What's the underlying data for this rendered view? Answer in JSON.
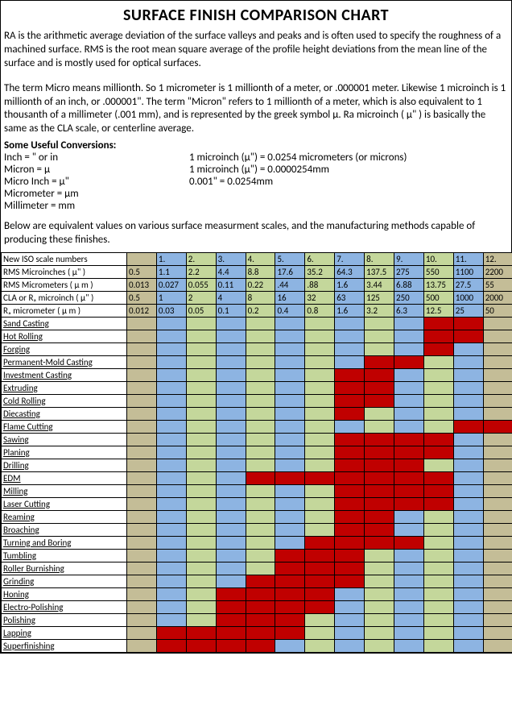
{
  "colors": {
    "tan": "#c4bd97",
    "blue": "#8db4e2",
    "green": "#c4d79b",
    "red": "#c00000",
    "white": "#ffffff"
  },
  "title": "SURFACE FINISH COMPARISON CHART",
  "para1": "RA is the arithmetic average deviation of the surface valleys and peaks and is often used to specify the roughness of a machined surface.  RMS is the root mean square average of the profile height deviations from the mean line of the surface and is mostly used for optical surfaces.",
  "para2": "The term Micro means millionth.  So 1 micrometer is 1 millionth of a meter, or .000001 meter. Likewise 1 microinch is 1 millionth of an inch, or .000001\".  The term \"Micron\" refers to 1 millionth of a meter, which is also equivalent to 1 thousanth of a millimeter (.001 mm), and is represented by the greek symbol μ.  Ra microinch ( μ\" ) is basically the same as the CLA scale, or centerline average.",
  "conv_head": "Some Useful Conversions:",
  "conversions": [
    {
      "l": "Inch = \" or in",
      "r": "1 microinch (μ\") = 0.0254 micrometers (or microns)"
    },
    {
      "l": "Micron = μ",
      "r": "1 microinch (μ\") = 0.0000254mm"
    },
    {
      "l": "Micro Inch = μ\"",
      "r": "0.001\" = 0.0254mm"
    },
    {
      "l": "Micrometer = μm",
      "r": ""
    },
    {
      "l": "Millimeter = mm",
      "r": ""
    }
  ],
  "para3": "Below are equivalent values on various surface measurment scales, and the manufacturing methods capable of producing these finishes.",
  "header_rows": [
    {
      "label": "New ISO scale numbers",
      "vals": [
        "",
        "1.",
        "2.",
        "3.",
        "4.",
        "5.",
        "6.",
        "7.",
        "8.",
        "9.",
        "10.",
        "11.",
        "12."
      ],
      "bg": [
        "tan",
        "blue",
        "green",
        "blue",
        "green",
        "blue",
        "green",
        "blue",
        "green",
        "blue",
        "green",
        "blue",
        "tan"
      ]
    },
    {
      "label": "RMS Microinches ( μ\" )",
      "vals": [
        "0.5",
        "1.1",
        "2.2",
        "4.4",
        "8.8",
        "17.6",
        "35.2",
        "64.3",
        "137.5",
        "275",
        "550",
        "1100",
        "2200"
      ],
      "bg": [
        "tan",
        "blue",
        "green",
        "blue",
        "green",
        "blue",
        "green",
        "blue",
        "green",
        "blue",
        "green",
        "blue",
        "tan"
      ]
    },
    {
      "label": "RMS Micrometers ( μ m )",
      "vals": [
        "0.013",
        "0.027",
        "0.055",
        "0.11",
        "0.22",
        ".44",
        ".88",
        "1.6",
        "3.44",
        "6.88",
        "13.75",
        "27.5",
        "55"
      ],
      "bg": [
        "tan",
        "blue",
        "green",
        "blue",
        "green",
        "blue",
        "green",
        "blue",
        "green",
        "blue",
        "green",
        "blue",
        "tan"
      ]
    },
    {
      "label": "CLA or Rₐ microinch ( μ\" )",
      "vals": [
        "0.5",
        "1",
        "2",
        "4",
        "8",
        "16",
        "32",
        "63",
        "125",
        "250",
        "500",
        "1000",
        "2000"
      ],
      "bg": [
        "tan",
        "blue",
        "green",
        "blue",
        "green",
        "blue",
        "green",
        "blue",
        "green",
        "blue",
        "green",
        "blue",
        "tan"
      ]
    },
    {
      "label": "Rₐ micrometer  ( μ m )",
      "vals": [
        "0.012",
        "0.03",
        "0.05",
        "0.1",
        "0.2",
        "0.4",
        "0.8",
        "1.6",
        "3.2",
        "6.3",
        "12.5",
        "25",
        "50"
      ],
      "bg": [
        "tan",
        "blue",
        "green",
        "blue",
        "green",
        "blue",
        "green",
        "blue",
        "green",
        "blue",
        "green",
        "blue",
        "tan"
      ]
    }
  ],
  "method_rows": [
    {
      "label": "Sand Casting",
      "cells": [
        "tan",
        "blue",
        "green",
        "blue",
        "green",
        "blue",
        "green",
        "blue",
        "green",
        "blue",
        "red",
        "red",
        "tan"
      ]
    },
    {
      "label": "Hot Rolling",
      "cells": [
        "tan",
        "blue",
        "green",
        "blue",
        "green",
        "blue",
        "green",
        "blue",
        "green",
        "blue",
        "red",
        "red",
        "tan"
      ]
    },
    {
      "label": "Forging",
      "cells": [
        "tan",
        "blue",
        "green",
        "blue",
        "green",
        "blue",
        "green",
        "blue",
        "green",
        "blue",
        "red",
        "blue",
        "tan"
      ]
    },
    {
      "label": "Permanent-Mold Casting",
      "cells": [
        "tan",
        "blue",
        "green",
        "blue",
        "green",
        "blue",
        "green",
        "blue",
        "red",
        "red",
        "green",
        "blue",
        "tan"
      ]
    },
    {
      "label": "Investment Casting",
      "cells": [
        "tan",
        "blue",
        "green",
        "blue",
        "green",
        "blue",
        "green",
        "red",
        "red",
        "blue",
        "green",
        "blue",
        "tan"
      ]
    },
    {
      "label": "Extruding",
      "cells": [
        "tan",
        "blue",
        "green",
        "blue",
        "green",
        "blue",
        "green",
        "red",
        "red",
        "blue",
        "green",
        "blue",
        "tan"
      ]
    },
    {
      "label": "Cold Rolling",
      "cells": [
        "tan",
        "blue",
        "green",
        "blue",
        "green",
        "blue",
        "green",
        "red",
        "red",
        "blue",
        "green",
        "blue",
        "tan"
      ]
    },
    {
      "label": "Diecasting",
      "cells": [
        "tan",
        "blue",
        "green",
        "blue",
        "green",
        "blue",
        "green",
        "red",
        "green",
        "blue",
        "green",
        "blue",
        "tan"
      ]
    },
    {
      "label": "Flame Cutting",
      "cells": [
        "tan",
        "blue",
        "green",
        "blue",
        "green",
        "blue",
        "green",
        "blue",
        "green",
        "blue",
        "green",
        "red",
        "red"
      ]
    },
    {
      "label": "Sawing",
      "cells": [
        "tan",
        "blue",
        "green",
        "blue",
        "green",
        "blue",
        "green",
        "red",
        "red",
        "red",
        "red",
        "blue",
        "tan"
      ]
    },
    {
      "label": "Planing",
      "cells": [
        "tan",
        "blue",
        "green",
        "blue",
        "green",
        "blue",
        "green",
        "red",
        "red",
        "red",
        "red",
        "blue",
        "tan"
      ]
    },
    {
      "label": "Drilling",
      "cells": [
        "tan",
        "blue",
        "green",
        "blue",
        "green",
        "blue",
        "green",
        "red",
        "red",
        "red",
        "green",
        "blue",
        "tan"
      ]
    },
    {
      "label": "EDM",
      "cells": [
        "tan",
        "blue",
        "green",
        "blue",
        "red",
        "red",
        "red",
        "red",
        "red",
        "red",
        "red",
        "blue",
        "tan"
      ]
    },
    {
      "label": "Milling",
      "cells": [
        "tan",
        "blue",
        "green",
        "blue",
        "green",
        "blue",
        "green",
        "red",
        "red",
        "red",
        "red",
        "blue",
        "tan"
      ]
    },
    {
      "label": "Laser Cutting",
      "cells": [
        "tan",
        "blue",
        "green",
        "blue",
        "green",
        "blue",
        "green",
        "red",
        "red",
        "red",
        "red",
        "blue",
        "tan"
      ]
    },
    {
      "label": "Reaming",
      "cells": [
        "tan",
        "blue",
        "green",
        "blue",
        "green",
        "blue",
        "green",
        "red",
        "red",
        "blue",
        "green",
        "blue",
        "tan"
      ]
    },
    {
      "label": "Broaching",
      "cells": [
        "tan",
        "blue",
        "green",
        "blue",
        "green",
        "blue",
        "green",
        "red",
        "red",
        "blue",
        "green",
        "blue",
        "tan"
      ]
    },
    {
      "label": "Turning and Boring",
      "cells": [
        "tan",
        "blue",
        "green",
        "blue",
        "green",
        "blue",
        "red",
        "red",
        "red",
        "red",
        "green",
        "blue",
        "tan"
      ]
    },
    {
      "label": "Tumbling",
      "cells": [
        "tan",
        "blue",
        "green",
        "blue",
        "green",
        "red",
        "red",
        "red",
        "green",
        "blue",
        "green",
        "blue",
        "tan"
      ]
    },
    {
      "label": "Roller Burnishing",
      "cells": [
        "tan",
        "blue",
        "green",
        "blue",
        "green",
        "red",
        "red",
        "red",
        "green",
        "blue",
        "green",
        "blue",
        "tan"
      ]
    },
    {
      "label": "Grinding",
      "cells": [
        "tan",
        "blue",
        "green",
        "blue",
        "red",
        "red",
        "red",
        "red",
        "green",
        "blue",
        "green",
        "blue",
        "tan"
      ]
    },
    {
      "label": "Honing",
      "cells": [
        "tan",
        "blue",
        "green",
        "red",
        "red",
        "red",
        "red",
        "blue",
        "green",
        "blue",
        "green",
        "blue",
        "tan"
      ]
    },
    {
      "label": "Electro-Polishing",
      "cells": [
        "tan",
        "blue",
        "green",
        "red",
        "red",
        "red",
        "red",
        "blue",
        "green",
        "blue",
        "green",
        "blue",
        "tan"
      ]
    },
    {
      "label": "Polishing",
      "cells": [
        "tan",
        "blue",
        "green",
        "red",
        "red",
        "red",
        "green",
        "blue",
        "green",
        "blue",
        "green",
        "blue",
        "tan"
      ]
    },
    {
      "label": "Lapping",
      "cells": [
        "tan",
        "red",
        "red",
        "red",
        "red",
        "red",
        "green",
        "blue",
        "green",
        "blue",
        "green",
        "blue",
        "tan"
      ]
    },
    {
      "label": "Superfinishing",
      "cells": [
        "tan",
        "red",
        "red",
        "red",
        "red",
        "blue",
        "green",
        "blue",
        "green",
        "blue",
        "green",
        "blue",
        "tan"
      ]
    }
  ]
}
